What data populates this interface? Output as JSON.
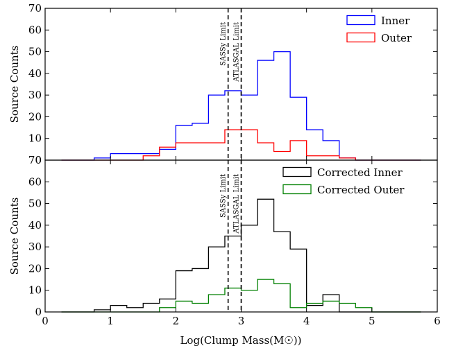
{
  "chart_data": [
    {
      "type": "line",
      "panel": "top",
      "step": true,
      "bin_edges": [
        0.25,
        0.5,
        0.75,
        1.0,
        1.25,
        1.5,
        1.75,
        2.0,
        2.25,
        2.5,
        2.75,
        3.0,
        3.25,
        3.5,
        3.75,
        4.0,
        4.25,
        4.5,
        4.75,
        5.0,
        5.25,
        5.5,
        5.75
      ],
      "series": [
        {
          "name": "Inner",
          "color": "#0000ff",
          "values": [
            0,
            0,
            1,
            3,
            3,
            3,
            5,
            16,
            17,
            30,
            32,
            30,
            46,
            50,
            29,
            14,
            9,
            1,
            0,
            0,
            0,
            0
          ]
        },
        {
          "name": "Outer",
          "color": "#ff0000",
          "values": [
            0,
            0,
            0,
            0,
            0,
            2,
            6,
            8,
            8,
            8,
            14,
            14,
            8,
            4,
            9,
            2,
            2,
            1,
            0,
            0,
            0,
            0
          ]
        }
      ],
      "xlim": [
        0,
        6
      ],
      "ylim": [
        0,
        70
      ],
      "yticks": [
        "0",
        "10",
        "20",
        "30",
        "40",
        "50",
        "60",
        "70"
      ],
      "ylabel": "Source Counts",
      "vlines": [
        {
          "x": 2.8,
          "label": "SASSy Limit"
        },
        {
          "x": 3.0,
          "label": "ATLASGAL Limit"
        }
      ],
      "legend": "top-right"
    },
    {
      "type": "line",
      "panel": "bottom",
      "step": true,
      "bin_edges": [
        0.25,
        0.5,
        0.75,
        1.0,
        1.25,
        1.5,
        1.75,
        2.0,
        2.25,
        2.5,
        2.75,
        3.0,
        3.25,
        3.5,
        3.75,
        4.0,
        4.25,
        4.5,
        4.75,
        5.0,
        5.25,
        5.5,
        5.75
      ],
      "series": [
        {
          "name": "Corrected Inner",
          "color": "#000000",
          "values": [
            0,
            0,
            1,
            3,
            2,
            4,
            6,
            19,
            20,
            30,
            35,
            40,
            52,
            37,
            29,
            3,
            8,
            0,
            0,
            0,
            0,
            0
          ]
        },
        {
          "name": "Corrected Outer",
          "color": "#008000",
          "values": [
            0,
            0,
            0,
            0,
            0,
            0,
            2,
            5,
            4,
            8,
            11,
            10,
            15,
            13,
            2,
            4,
            5,
            4,
            2,
            0,
            0,
            0
          ]
        }
      ],
      "xlim": [
        0,
        6
      ],
      "ylim": [
        0,
        70
      ],
      "xticks": [
        "0",
        "1",
        "2",
        "3",
        "4",
        "5",
        "6"
      ],
      "yticks": [
        "0",
        "10",
        "20",
        "30",
        "40",
        "50",
        "60",
        "70"
      ],
      "xlabel": "Log(Clump Mass(M☉))",
      "ylabel": "Source Counts",
      "vlines": [
        {
          "x": 2.8,
          "label": "SASSy Limit"
        },
        {
          "x": 3.0,
          "label": "ATLASGAL Limit"
        }
      ],
      "legend": "top-right"
    }
  ]
}
